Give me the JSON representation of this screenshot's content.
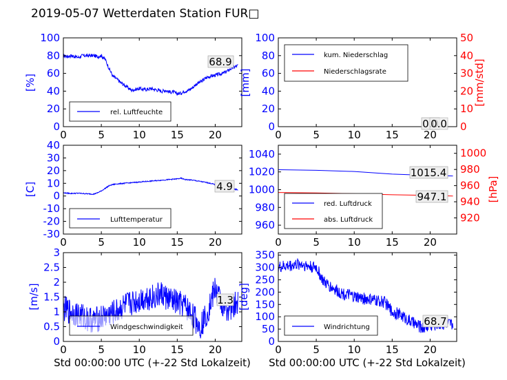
{
  "title": "2019-05-07 Wetterdaten Station FUR□",
  "xlabel": "Std 00:00:00 UTC (+-22 Std Lokalzeit)",
  "colors": {
    "blue": "#0000ff",
    "red": "#ff0000",
    "black": "#000000"
  },
  "chart_data": [
    {
      "id": "humidity",
      "type": "line",
      "ylabel": "[%]",
      "xlim": [
        0,
        23.5
      ],
      "ylim": [
        0,
        100
      ],
      "xticks": [
        0,
        5,
        10,
        15,
        20
      ],
      "yticks": [
        0,
        20,
        40,
        60,
        80,
        100
      ],
      "series": [
        {
          "name": "rel. Luftfeuchte",
          "color": "#0000ff",
          "x": [
            0,
            0.5,
            1,
            1.5,
            2,
            2.5,
            3,
            3.5,
            4,
            4.5,
            5,
            5.5,
            6,
            6.5,
            7,
            7.5,
            8,
            8.5,
            9,
            9.5,
            10,
            10.5,
            11,
            11.5,
            12,
            12.5,
            13,
            13.5,
            14,
            14.5,
            15,
            15.5,
            16,
            16.5,
            17,
            17.5,
            18,
            18.5,
            19,
            19.5,
            20,
            20.5,
            21,
            21.5,
            22,
            22.5,
            23
          ],
          "y": [
            80,
            79,
            80,
            79,
            78,
            80,
            80,
            80,
            80,
            79,
            80,
            76,
            66,
            57,
            54,
            50,
            47,
            44,
            41,
            42,
            43,
            42,
            42,
            43,
            42,
            41,
            40,
            41,
            39,
            39,
            37,
            38,
            40,
            41,
            44,
            48,
            50,
            53,
            56,
            57,
            58,
            59,
            60,
            62,
            65,
            67,
            69
          ],
          "noise": 2.0
        }
      ],
      "value_labels": [
        {
          "text": "68.9"
        }
      ]
    },
    {
      "id": "precip",
      "type": "line",
      "ylabel": "[mm]",
      "ylabel_right": "[mm/std]",
      "xlim": [
        0,
        23.5
      ],
      "ylim": [
        0,
        100
      ],
      "ylim_right": [
        0,
        50
      ],
      "xticks": [
        0,
        5,
        10,
        15,
        20
      ],
      "yticks": [
        0,
        20,
        40,
        60,
        80,
        100
      ],
      "yticks_right": [
        0,
        10,
        20,
        30,
        40,
        50
      ],
      "series": [
        {
          "name": "kum. Niederschlag",
          "color": "#0000ff",
          "x": [
            0,
            23
          ],
          "y": [
            0,
            0
          ],
          "noise": 0
        },
        {
          "name": "Niederschlagsrate",
          "color": "#ff0000",
          "axis": "right",
          "x": [
            0,
            23
          ],
          "y": [
            0,
            0
          ],
          "noise": 0
        }
      ],
      "value_labels": [
        {
          "text": "0.0"
        },
        {
          "text": "0.0"
        }
      ]
    },
    {
      "id": "temperature",
      "type": "line",
      "ylabel": "[C]",
      "xlim": [
        0,
        23.5
      ],
      "ylim": [
        -30,
        40
      ],
      "xticks": [
        0,
        5,
        10,
        15,
        20
      ],
      "yticks": [
        -30,
        -20,
        -10,
        0,
        10,
        20,
        30,
        40
      ],
      "series": [
        {
          "name": "Lufttemperatur",
          "color": "#0000ff",
          "x": [
            0,
            1,
            2,
            3,
            4,
            4.5,
            5,
            5.5,
            6,
            6.5,
            7,
            8,
            9,
            10,
            11,
            12,
            13,
            14,
            15,
            15.5,
            16,
            17,
            18,
            19,
            20,
            21,
            22,
            23
          ],
          "y": [
            2.5,
            2,
            2.2,
            1.8,
            1.5,
            2.5,
            4,
            6,
            8,
            9,
            9.5,
            10,
            10.5,
            11,
            11.5,
            12,
            12.5,
            13,
            13.5,
            14,
            13,
            12.5,
            11.5,
            10.5,
            9,
            7.5,
            6,
            4.9
          ],
          "noise": 0.4
        }
      ],
      "value_labels": [
        {
          "text": "4.9"
        }
      ]
    },
    {
      "id": "pressure",
      "type": "line",
      "ylabel_right": "[hPa]",
      "xlim": [
        0,
        23.5
      ],
      "ylim": [
        950,
        1050
      ],
      "ylim_right": [
        900,
        1010
      ],
      "xticks": [
        0,
        5,
        10,
        15,
        20
      ],
      "yticks": [
        960,
        980,
        1000,
        1020,
        1040
      ],
      "yticks_right": [
        920,
        940,
        960,
        980,
        1000
      ],
      "series": [
        {
          "name": "red. Luftdruck",
          "color": "#0000ff",
          "x": [
            0,
            5,
            10,
            15,
            20,
            23
          ],
          "y": [
            1022.5,
            1021.8,
            1020.5,
            1017.5,
            1016.0,
            1015.4
          ],
          "noise": 0
        },
        {
          "name": "abs. Luftdruck",
          "color": "#ff0000",
          "axis": "right",
          "x": [
            0,
            5,
            10,
            15,
            20,
            23
          ],
          "y": [
            951.5,
            951.0,
            950.0,
            948.7,
            947.8,
            947.1
          ],
          "noise": 0
        }
      ],
      "value_labels": [
        {
          "text": "1015.4"
        },
        {
          "text": "947.1"
        }
      ]
    },
    {
      "id": "windspeed",
      "type": "line",
      "ylabel": "[m/s]",
      "xlim": [
        0,
        23.5
      ],
      "ylim": [
        0,
        3
      ],
      "xticks": [
        0,
        5,
        10,
        15,
        20
      ],
      "yticks": [
        0,
        0.5,
        1,
        1.5,
        2,
        2.5,
        3
      ],
      "series": [
        {
          "name": "Windgeschwindigkeit",
          "color": "#0000ff",
          "x": [
            0,
            1,
            2,
            3,
            4,
            5,
            6,
            7,
            8,
            9,
            10,
            11,
            12,
            13,
            14,
            15,
            16,
            17,
            18,
            19,
            20,
            21,
            22,
            23
          ],
          "y": [
            1.1,
            1.0,
            0.9,
            0.8,
            0.7,
            0.8,
            0.9,
            1.0,
            1.2,
            1.3,
            1.4,
            1.5,
            1.5,
            1.6,
            1.4,
            1.3,
            1.2,
            0.9,
            0.5,
            1.0,
            1.8,
            1.2,
            1.1,
            1.3
          ],
          "noise": 0.45
        }
      ],
      "value_labels": [
        {
          "text": "1.3"
        }
      ]
    },
    {
      "id": "winddir",
      "type": "line",
      "ylabel": "[deg]",
      "xlim": [
        0,
        23.5
      ],
      "ylim": [
        0,
        360
      ],
      "xticks": [
        0,
        5,
        10,
        15,
        20
      ],
      "yticks": [
        0,
        50,
        100,
        150,
        200,
        250,
        300,
        350
      ],
      "series": [
        {
          "name": "Windrichtung",
          "color": "#0000ff",
          "x": [
            0,
            1,
            2,
            3,
            4,
            5,
            5.5,
            6,
            7,
            8,
            9,
            10,
            11,
            12,
            13,
            14,
            15,
            16,
            17,
            18,
            19,
            20,
            21,
            22,
            23
          ],
          "y": [
            300,
            305,
            310,
            315,
            305,
            300,
            270,
            240,
            220,
            200,
            190,
            180,
            175,
            170,
            165,
            160,
            120,
            110,
            90,
            70,
            55,
            65,
            70,
            72,
            68.7
          ],
          "noise": 25
        }
      ],
      "value_labels": [
        {
          "text": "68.7"
        }
      ]
    }
  ]
}
